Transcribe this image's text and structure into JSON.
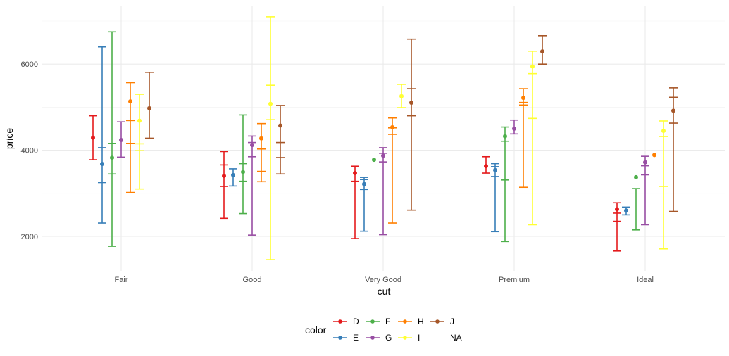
{
  "chart_data": {
    "type": "errorbar",
    "xlabel": "cut",
    "ylabel": "price",
    "ylim": [
      1200,
      7300
    ],
    "y_ticks": [
      2000,
      4000,
      6000
    ],
    "y_tick_labels": [
      "2000",
      "4000",
      "6000"
    ],
    "grid": true,
    "categories": [
      "Fair",
      "Good",
      "Very Good",
      "Premium",
      "Ideal"
    ],
    "legend": {
      "title": "color",
      "placement": "bottom",
      "entries": [
        "D",
        "E",
        "F",
        "G",
        "H",
        "I",
        "J",
        "NA"
      ]
    },
    "series": [
      {
        "name": "D",
        "color": "#E41A1C",
        "mean": [
          4291,
          3405,
          3470,
          3631,
          2629
        ],
        "lower": [
          3780,
          2420,
          1950,
          3470,
          1660
        ],
        "upper": [
          4800,
          3970,
          3630,
          3850,
          2780
        ],
        "inner_caps": [
          [],
          [
            3160,
            3660
          ],
          [
            3280,
            3620
          ],
          [],
          [
            2350,
            2540
          ]
        ]
      },
      {
        "name": "E",
        "color": "#377EB8",
        "mean": [
          3682,
          3424,
          3215,
          3539,
          2598
        ],
        "lower": [
          2310,
          3170,
          2120,
          2110,
          2500
        ],
        "upper": [
          6400,
          3570,
          3370,
          3690,
          2680
        ],
        "inner_caps": [
          [
            3250,
            4060
          ],
          [],
          [
            3090,
            3320
          ],
          [
            3390,
            3620
          ],
          []
        ]
      },
      {
        "name": "F",
        "color": "#4DAF4A",
        "mean": [
          3827,
          3496,
          3779,
          4325,
          3375
        ],
        "lower": [
          1770,
          2530,
          3779,
          1880,
          2150
        ],
        "upper": [
          6750,
          4820,
          3779,
          4540,
          3110
        ],
        "inner_caps": [
          [
            3450,
            4160
          ],
          [
            3280,
            3690
          ],
          [],
          [
            4210,
            3310
          ],
          []
        ]
      },
      {
        "name": "G",
        "color": "#984EA3",
        "mean": [
          4239,
          4123,
          3873,
          4501,
          3721
        ],
        "lower": [
          3840,
          2030,
          2040,
          4380,
          2270
        ],
        "upper": [
          4660,
          4330,
          4060,
          4700,
          3860
        ],
        "inner_caps": [
          [],
          [
            3850,
            4180
          ],
          [
            3730,
            3930
          ],
          [],
          [
            3430,
            3640
          ]
        ]
      },
      {
        "name": "H",
        "color": "#FF7F00",
        "mean": [
          5136,
          4276,
          4535,
          5217,
          3889
        ],
        "lower": [
          3020,
          3270,
          2310,
          3140,
          3889
        ],
        "upper": [
          5570,
          4620,
          4750,
          5430,
          3889
        ],
        "inner_caps": [
          [
            4160,
            4690
          ],
          [
            3510,
            4030
          ],
          [
            4370,
            4520
          ],
          [
            5050,
            5110
          ],
          []
        ]
      },
      {
        "name": "I",
        "color": "#FFFF33",
        "mean": [
          4685,
          5079,
          5256,
          5946,
          4451
        ],
        "lower": [
          3100,
          1460,
          4990,
          2270,
          1710
        ],
        "upper": [
          5300,
          7100,
          5530,
          6300,
          4680
        ],
        "inner_caps": [
          [
            3990,
            4150
          ],
          [
            4710,
            5510
          ],
          [],
          [
            5780,
            4740
          ],
          [
            3160,
            4320
          ]
        ]
      },
      {
        "name": "J",
        "color": "#A65628",
        "mean": [
          4976,
          4574,
          5104,
          6295,
          4918
        ],
        "lower": [
          4280,
          3450,
          2610,
          6000,
          2580
        ],
        "upper": [
          5810,
          5040,
          6580,
          6660,
          5450
        ],
        "inner_caps": [
          [],
          [
            3830,
            4180
          ],
          [
            4800,
            5430
          ],
          [],
          [
            4630,
            5230
          ]
        ]
      }
    ]
  }
}
